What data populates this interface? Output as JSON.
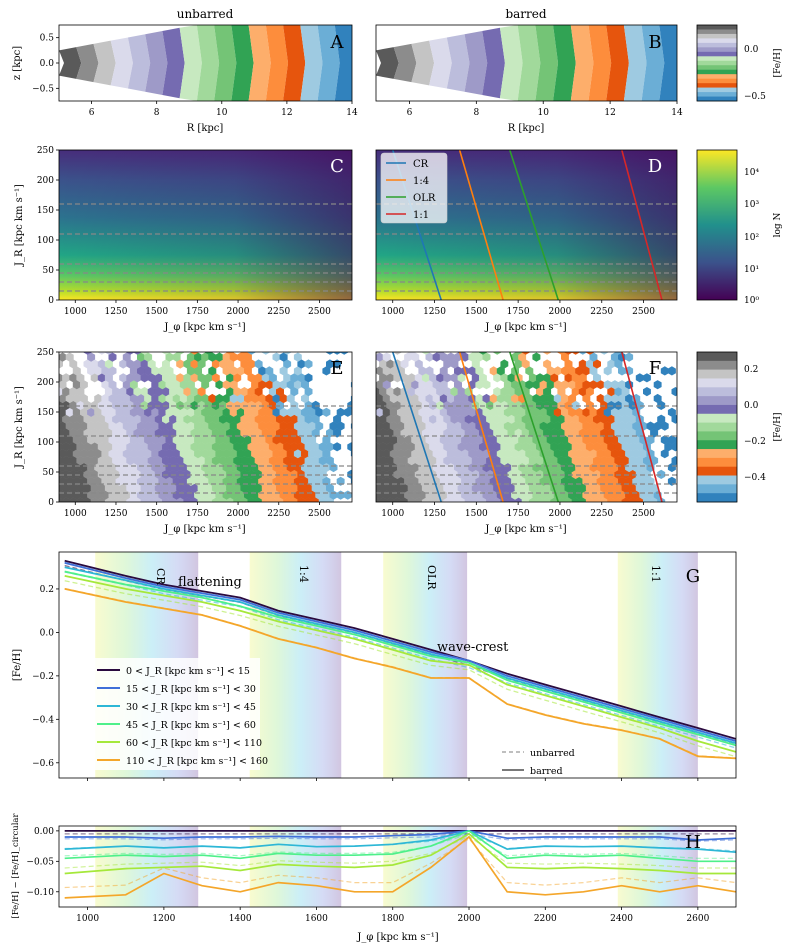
{
  "figure": {
    "panels": {
      "A": {
        "title": "unbarred",
        "letter": "A",
        "xlabel": "R [kpc]",
        "ylabel": "z [kpc]",
        "xticks": [
          "6",
          "8",
          "10",
          "12",
          "14"
        ],
        "yticks": [
          "0.5",
          "0.0",
          "−0.5"
        ]
      },
      "B": {
        "title": "barred",
        "letter": "B",
        "xlabel": "R [kpc]",
        "xticks": [
          "6",
          "8",
          "10",
          "12",
          "14"
        ]
      },
      "C": {
        "letter": "C",
        "xlabel": "J_φ [kpc km s⁻¹]",
        "ylabel": "J_R [kpc km s⁻¹]",
        "xticks": [
          "1000",
          "1250",
          "1500",
          "1750",
          "2000",
          "2250",
          "2500"
        ],
        "yticks": [
          "250",
          "200",
          "150",
          "100",
          "50",
          "0"
        ]
      },
      "D": {
        "letter": "D",
        "xlabel": "J_φ [kpc km s⁻¹]",
        "xticks": [
          "1000",
          "1250",
          "1500",
          "1750",
          "2000",
          "2250",
          "2500"
        ],
        "legend": [
          "CR",
          "1:4",
          "OLR",
          "1:1"
        ]
      },
      "E": {
        "letter": "E",
        "xlabel": "J_φ [kpc km s⁻¹]",
        "ylabel": "J_R [kpc km s⁻¹]",
        "xticks": [
          "1000",
          "1250",
          "1500",
          "1750",
          "2000",
          "2250",
          "2500"
        ],
        "yticks": [
          "250",
          "200",
          "150",
          "100",
          "50",
          "0"
        ]
      },
      "F": {
        "letter": "F",
        "xlabel": "J_φ [kpc km s⁻¹]",
        "xticks": [
          "1000",
          "1250",
          "1500",
          "1750",
          "2000",
          "2250",
          "2500"
        ]
      },
      "G": {
        "letter": "G",
        "ylabel": "[Fe/H]",
        "yticks": [
          "0.2",
          "0.0",
          "−0.2",
          "−0.4",
          "−0.6"
        ],
        "band_labels": [
          "CR",
          "1:4",
          "OLR",
          "1:1"
        ],
        "annotations": [
          "flattening",
          "wave-crest"
        ],
        "legend": [
          "0 < J_R [kpc km s⁻¹] < 15",
          "15 < J_R [kpc km s⁻¹] < 30",
          "30 < J_R [kpc km s⁻¹] < 45",
          "45 < J_R [kpc km s⁻¹] < 60",
          "60 < J_R [kpc km s⁻¹] < 110",
          "110 < J_R [kpc km s⁻¹] < 160"
        ],
        "style_legend": [
          "unbarred",
          "barred"
        ]
      },
      "H": {
        "letter": "H",
        "xlabel": "J_φ [kpc km s⁻¹]",
        "ylabel": "[Fe/H] − [Fe/H]_circular",
        "xticks": [
          "1000",
          "1200",
          "1400",
          "1600",
          "1800",
          "2000",
          "2200",
          "2400",
          "2600"
        ],
        "yticks": [
          "0.00",
          "−0.05",
          "−0.10"
        ]
      }
    },
    "colorbars": {
      "feh_top": {
        "label": "[Fe/H]",
        "ticks": [
          "0.0",
          "−0.5"
        ]
      },
      "logN": {
        "label": "log N",
        "ticks": [
          "10⁴",
          "10³",
          "10²",
          "10¹",
          "10⁰"
        ]
      },
      "feh_mid": {
        "label": "[Fe/H]",
        "ticks": [
          "0.2",
          "0.0",
          "−0.2",
          "−0.4"
        ]
      }
    }
  },
  "chart_data": {
    "type": "line",
    "title": "",
    "xlabel": "J_φ [kpc km s⁻¹]",
    "ylabel": "[Fe/H]",
    "xlim": [
      925,
      2700
    ],
    "ylim": [
      -0.67,
      0.37
    ],
    "resonances": [
      {
        "name": "CR",
        "range": [
          1020,
          1290
        ]
      },
      {
        "name": "1:4",
        "range": [
          1425,
          1665
        ]
      },
      {
        "name": "OLR",
        "range": [
          1775,
          1995
        ]
      },
      {
        "name": "1:1",
        "range": [
          2390,
          2600
        ]
      }
    ],
    "resonance_lines": [
      {
        "name": "CR",
        "color": "#1f77b4",
        "top": [
          1000,
          250
        ],
        "bottom": [
          1290,
          0
        ]
      },
      {
        "name": "1:4",
        "color": "#ff7f0e",
        "top": [
          1400,
          250
        ],
        "bottom": [
          1660,
          0
        ]
      },
      {
        "name": "OLR",
        "color": "#2ca02c",
        "top": [
          1700,
          250
        ],
        "bottom": [
          1990,
          0
        ]
      },
      {
        "name": "1:1",
        "color": "#d62728",
        "top": [
          2370,
          250
        ],
        "bottom": [
          2610,
          0
        ]
      }
    ],
    "dashed_JR_levels": [
      15,
      30,
      45,
      60,
      110,
      160
    ],
    "x": [
      940,
      1100,
      1200,
      1300,
      1400,
      1500,
      1600,
      1700,
      1800,
      1900,
      2000,
      2100,
      2200,
      2300,
      2400,
      2500,
      2600,
      2700
    ],
    "series": [
      {
        "name": "0 < J_R < 15",
        "color": "#2a0a3f",
        "values": [
          0.33,
          0.26,
          0.22,
          0.19,
          0.16,
          0.1,
          0.06,
          0.02,
          -0.03,
          -0.08,
          -0.13,
          -0.19,
          -0.24,
          -0.29,
          -0.34,
          -0.39,
          -0.44,
          -0.49
        ]
      },
      {
        "name": "15 < J_R < 30",
        "color": "#3f6fd8",
        "values": [
          0.32,
          0.25,
          0.21,
          0.18,
          0.15,
          0.09,
          0.05,
          0.01,
          -0.04,
          -0.09,
          -0.13,
          -0.2,
          -0.25,
          -0.3,
          -0.35,
          -0.4,
          -0.45,
          -0.5
        ]
      },
      {
        "name": "30 < J_R < 45",
        "color": "#2db7d6",
        "values": [
          0.3,
          0.24,
          0.2,
          0.17,
          0.14,
          0.08,
          0.04,
          0.0,
          -0.05,
          -0.1,
          -0.14,
          -0.21,
          -0.26,
          -0.31,
          -0.36,
          -0.41,
          -0.46,
          -0.51
        ]
      },
      {
        "name": "45 < J_R < 60",
        "color": "#4ef08a",
        "values": [
          0.28,
          0.22,
          0.19,
          0.16,
          0.12,
          0.07,
          0.03,
          -0.01,
          -0.06,
          -0.11,
          -0.14,
          -0.22,
          -0.27,
          -0.32,
          -0.37,
          -0.42,
          -0.47,
          -0.52
        ]
      },
      {
        "name": "60 < J_R < 110",
        "color": "#a5e83a",
        "values": [
          0.26,
          0.2,
          0.17,
          0.14,
          0.1,
          0.05,
          0.01,
          -0.03,
          -0.08,
          -0.13,
          -0.15,
          -0.24,
          -0.29,
          -0.34,
          -0.39,
          -0.44,
          -0.5,
          -0.55
        ]
      },
      {
        "name": "110 < J_R < 160",
        "color": "#f4a62a",
        "values": [
          0.2,
          0.14,
          0.11,
          0.08,
          0.03,
          -0.03,
          -0.07,
          -0.12,
          -0.16,
          -0.21,
          -0.21,
          -0.33,
          -0.38,
          -0.42,
          -0.45,
          -0.49,
          -0.57,
          -0.58
        ]
      }
    ],
    "residual_series": [
      {
        "name": "0 < J_R < 15",
        "color": "#2a0a3f",
        "values": [
          0.0,
          0.0,
          0.0,
          0.0,
          0.0,
          0.0,
          0.0,
          0.0,
          0.0,
          0.0,
          0.0,
          0.0,
          0.0,
          0.0,
          0.0,
          0.0,
          0.0,
          0.0
        ]
      },
      {
        "name": "15 < J_R < 30",
        "color": "#3f6fd8",
        "values": [
          -0.01,
          -0.01,
          -0.012,
          -0.01,
          -0.01,
          -0.009,
          -0.01,
          -0.01,
          -0.008,
          -0.006,
          0.0,
          -0.012,
          -0.01,
          -0.01,
          -0.01,
          -0.01,
          -0.015,
          -0.012
        ]
      },
      {
        "name": "30 < J_R < 45",
        "color": "#2db7d6",
        "values": [
          -0.03,
          -0.025,
          -0.028,
          -0.025,
          -0.028,
          -0.022,
          -0.026,
          -0.025,
          -0.022,
          -0.015,
          0.0,
          -0.03,
          -0.025,
          -0.026,
          -0.025,
          -0.028,
          -0.03,
          -0.035
        ]
      },
      {
        "name": "45 < J_R < 60",
        "color": "#4ef08a",
        "values": [
          -0.045,
          -0.04,
          -0.042,
          -0.04,
          -0.045,
          -0.037,
          -0.04,
          -0.04,
          -0.038,
          -0.025,
          0.0,
          -0.045,
          -0.04,
          -0.042,
          -0.04,
          -0.045,
          -0.05,
          -0.05
        ]
      },
      {
        "name": "60 < J_R < 110",
        "color": "#a5e83a",
        "values": [
          -0.07,
          -0.062,
          -0.06,
          -0.058,
          -0.065,
          -0.055,
          -0.058,
          -0.06,
          -0.056,
          -0.04,
          -0.005,
          -0.06,
          -0.062,
          -0.06,
          -0.062,
          -0.065,
          -0.07,
          -0.07
        ]
      },
      {
        "name": "110 < J_R < 160",
        "color": "#f4a62a",
        "values": [
          -0.11,
          -0.105,
          -0.07,
          -0.09,
          -0.1,
          -0.085,
          -0.09,
          -0.1,
          -0.1,
          -0.06,
          -0.01,
          -0.1,
          -0.105,
          -0.1,
          -0.09,
          -0.1,
          -0.09,
          -0.1
        ]
      }
    ]
  }
}
